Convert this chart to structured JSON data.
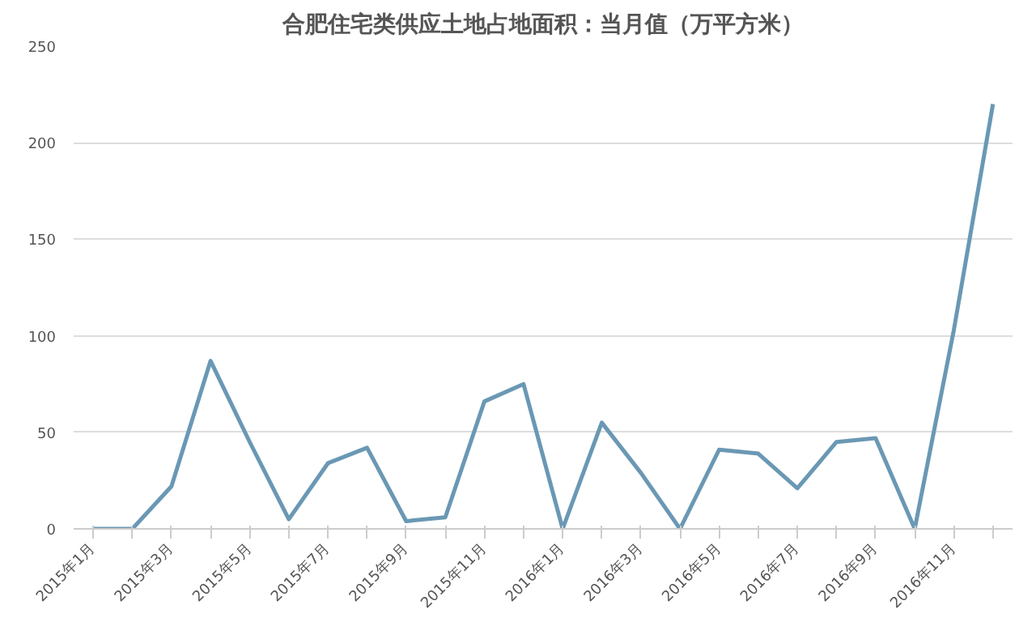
{
  "chart_data": {
    "type": "line",
    "title": "合肥住宅类供应土地占地面积：当月值（万平方米）",
    "categories": [
      "2015年1月",
      null,
      "2015年3月",
      null,
      "2015年5月",
      null,
      "2015年7月",
      null,
      "2015年9月",
      null,
      "2015年11月",
      null,
      "2016年1月",
      null,
      "2016年3月",
      null,
      "2016年5月",
      null,
      "2016年7月",
      null,
      "2016年9月",
      null,
      "2016年11月",
      null
    ],
    "values": [
      0,
      0,
      22,
      87,
      45,
      5,
      34,
      42,
      4,
      6,
      66,
      75,
      0,
      55,
      29,
      0,
      41,
      39,
      21,
      45,
      47,
      0,
      103,
      220
    ],
    "color": "#6a98b4",
    "ylim": [
      0,
      250
    ],
    "yticks": [
      0,
      50,
      100,
      150,
      200,
      250
    ],
    "grid": "y",
    "marker": "none",
    "line_style": "solid"
  }
}
